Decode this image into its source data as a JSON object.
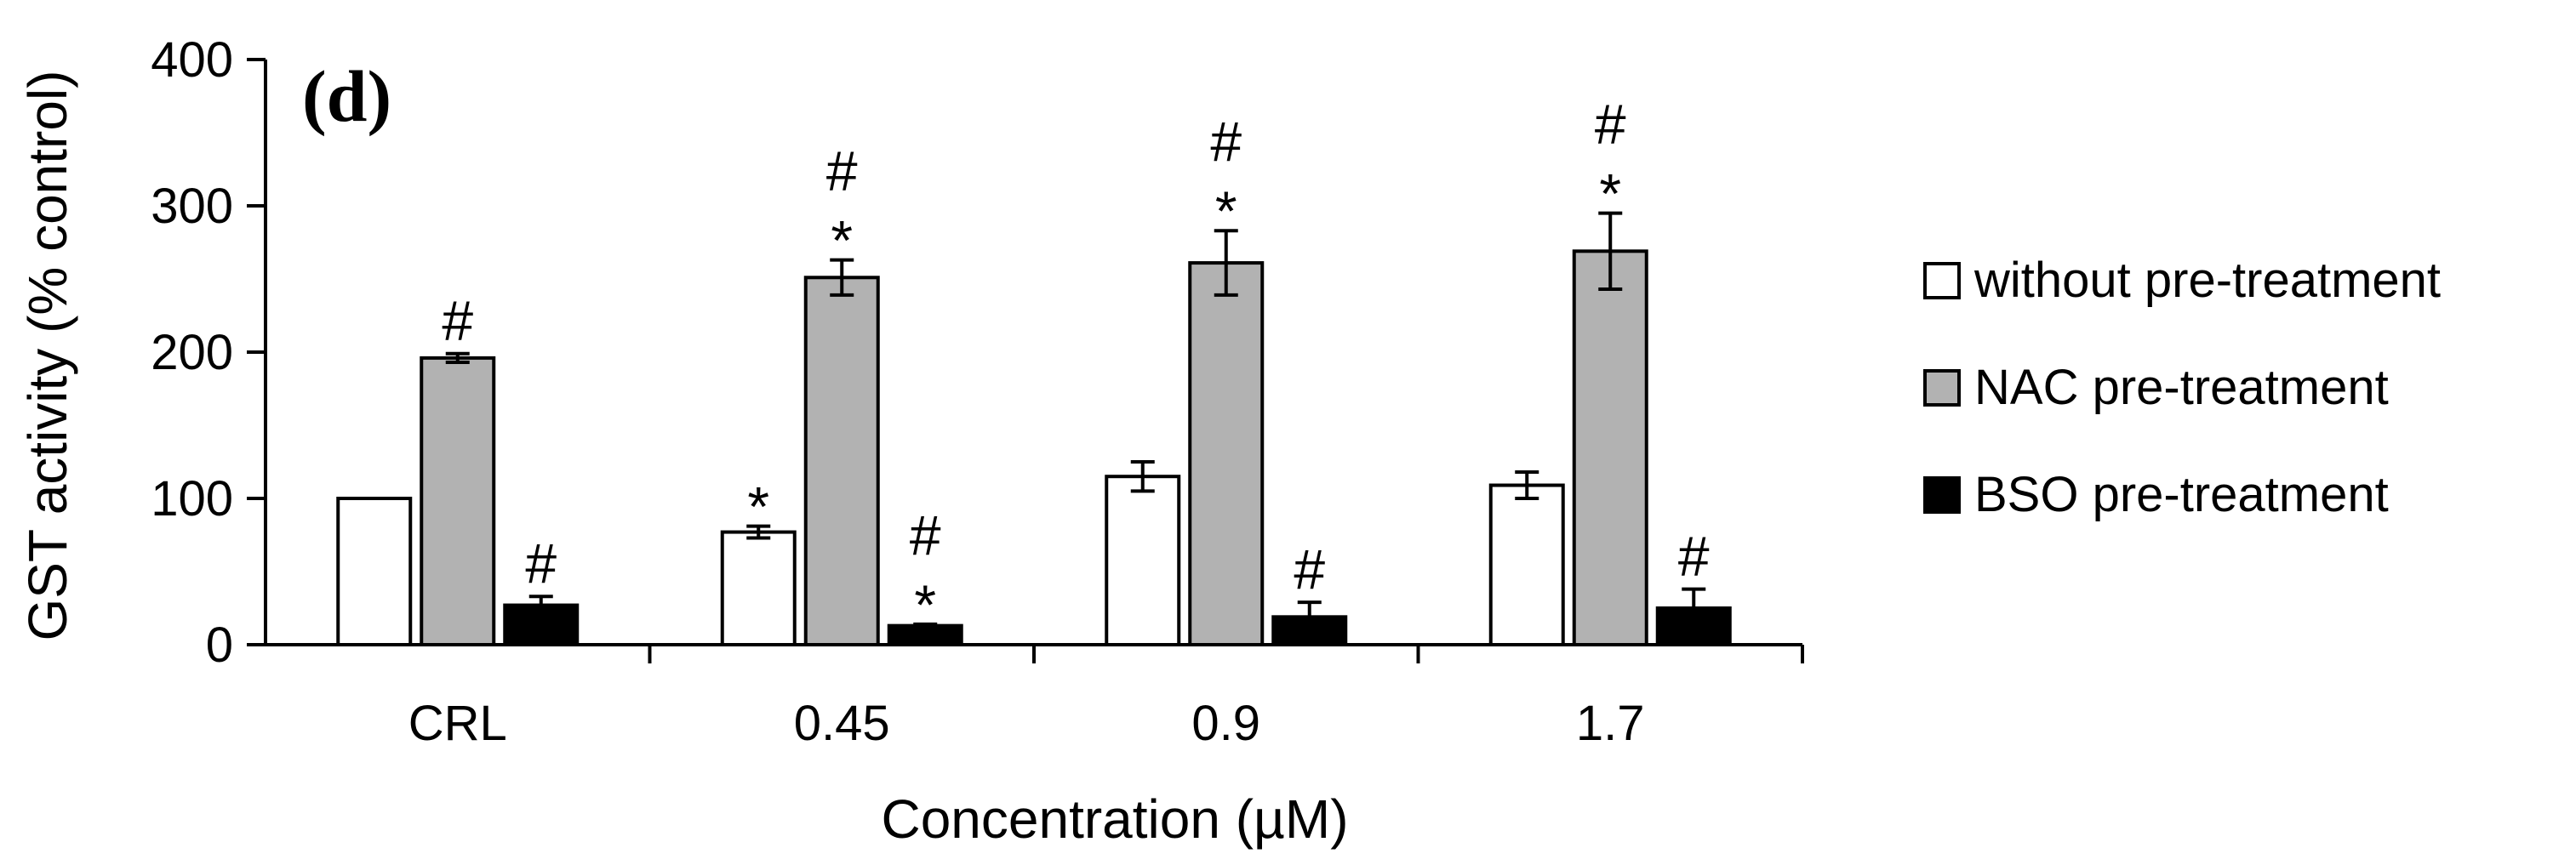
{
  "chart_data": {
    "type": "bar",
    "panel_label": "(d)",
    "categories": [
      "CRL",
      "0.45",
      "0.9",
      "1.7"
    ],
    "xlabel": "Concentration (µM)",
    "ylabel": "GST activity (% control)",
    "ylim": [
      0,
      400
    ],
    "yticks": [
      0,
      100,
      200,
      300,
      400
    ],
    "legend_position": "right",
    "series": [
      {
        "name": "without pre-treatment",
        "color": "#ffffff",
        "values": [
          100,
          77,
          115,
          109
        ],
        "errors": [
          0,
          4,
          10,
          9
        ],
        "annotations": [
          "",
          "*",
          "",
          ""
        ]
      },
      {
        "name": "NAC pre-treatment",
        "color": "#b2b2b2",
        "values": [
          196,
          251,
          261,
          269
        ],
        "errors": [
          3,
          12,
          22,
          26
        ],
        "annotations": [
          "#",
          "#\n*",
          "#\n*",
          "#\n*"
        ]
      },
      {
        "name": "BSO pre-treatment",
        "color": "#000000",
        "values": [
          27,
          13,
          19,
          25
        ],
        "errors": [
          6,
          1,
          10,
          13
        ],
        "annotations": [
          "#",
          "#\n*",
          "#",
          "#"
        ]
      }
    ]
  }
}
